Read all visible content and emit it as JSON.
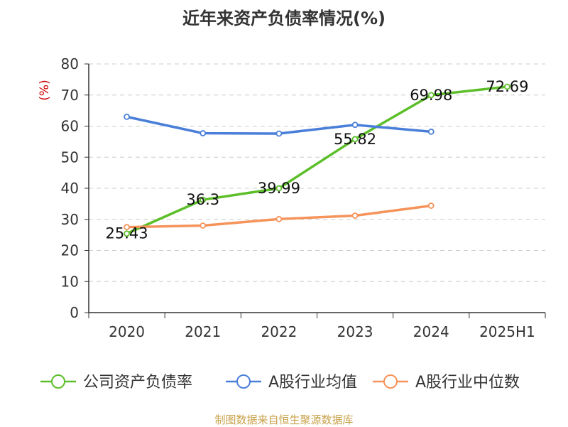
{
  "chart_data": {
    "type": "line",
    "title": "近年来资产负债率情况(%)",
    "ylabel": "(%)",
    "xlabel": "",
    "categories": [
      "2020",
      "2021",
      "2022",
      "2023",
      "2024",
      "2025H1"
    ],
    "ylim": [
      0,
      80
    ],
    "yticks": [
      0,
      10,
      20,
      30,
      40,
      50,
      60,
      70,
      80
    ],
    "grid": "horizontal-dashed",
    "legend_position": "bottom",
    "series": [
      {
        "name": "公司资产负债率",
        "color": "#5cbf2a",
        "values": [
          25.43,
          36.3,
          39.99,
          55.82,
          69.98,
          72.69
        ],
        "labels": [
          "25.43",
          "36.3",
          "39.99",
          "55.82",
          "69.98",
          "72.69"
        ]
      },
      {
        "name": "A股行业均值",
        "color": "#4a7fd9",
        "values": [
          63.0,
          57.7,
          57.6,
          60.4,
          58.2,
          null
        ]
      },
      {
        "name": "A股行业中位数",
        "color": "#f5935a",
        "values": [
          27.5,
          28.0,
          30.1,
          31.2,
          34.4,
          null
        ]
      }
    ]
  },
  "source_note": "制图数据来自恒生聚源数据库"
}
